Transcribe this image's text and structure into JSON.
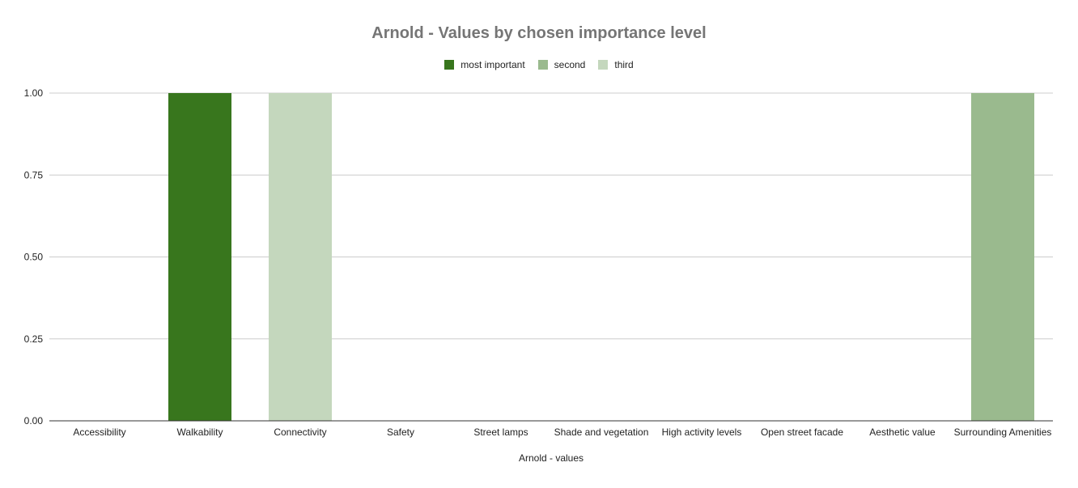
{
  "chart_data": {
    "type": "bar",
    "title": "Arnold - Values by chosen importance level",
    "xlabel": "Arnold - values",
    "ylabel": "",
    "ylim": [
      0,
      1
    ],
    "yticks": [
      "0.00",
      "0.25",
      "0.50",
      "0.75",
      "1.00"
    ],
    "grid": true,
    "legend_position": "top",
    "categories": [
      "Accessibility",
      "Walkability",
      "Connectivity",
      "Safety",
      "Street lamps",
      "Shade and vegetation",
      "High activity levels",
      "Open street facade",
      "Aesthetic value",
      "Surrounding Amenities"
    ],
    "series": [
      {
        "name": "most important",
        "color": "#38761d",
        "values": [
          0,
          1,
          0,
          0,
          0,
          0,
          0,
          0,
          0,
          0
        ]
      },
      {
        "name": "second",
        "color": "#9aba8e",
        "values": [
          0,
          0,
          0,
          0,
          0,
          0,
          0,
          0,
          0,
          1
        ]
      },
      {
        "name": "third",
        "color": "#c4d7bd",
        "values": [
          0,
          0,
          1,
          0,
          0,
          0,
          0,
          0,
          0,
          0
        ]
      }
    ]
  }
}
